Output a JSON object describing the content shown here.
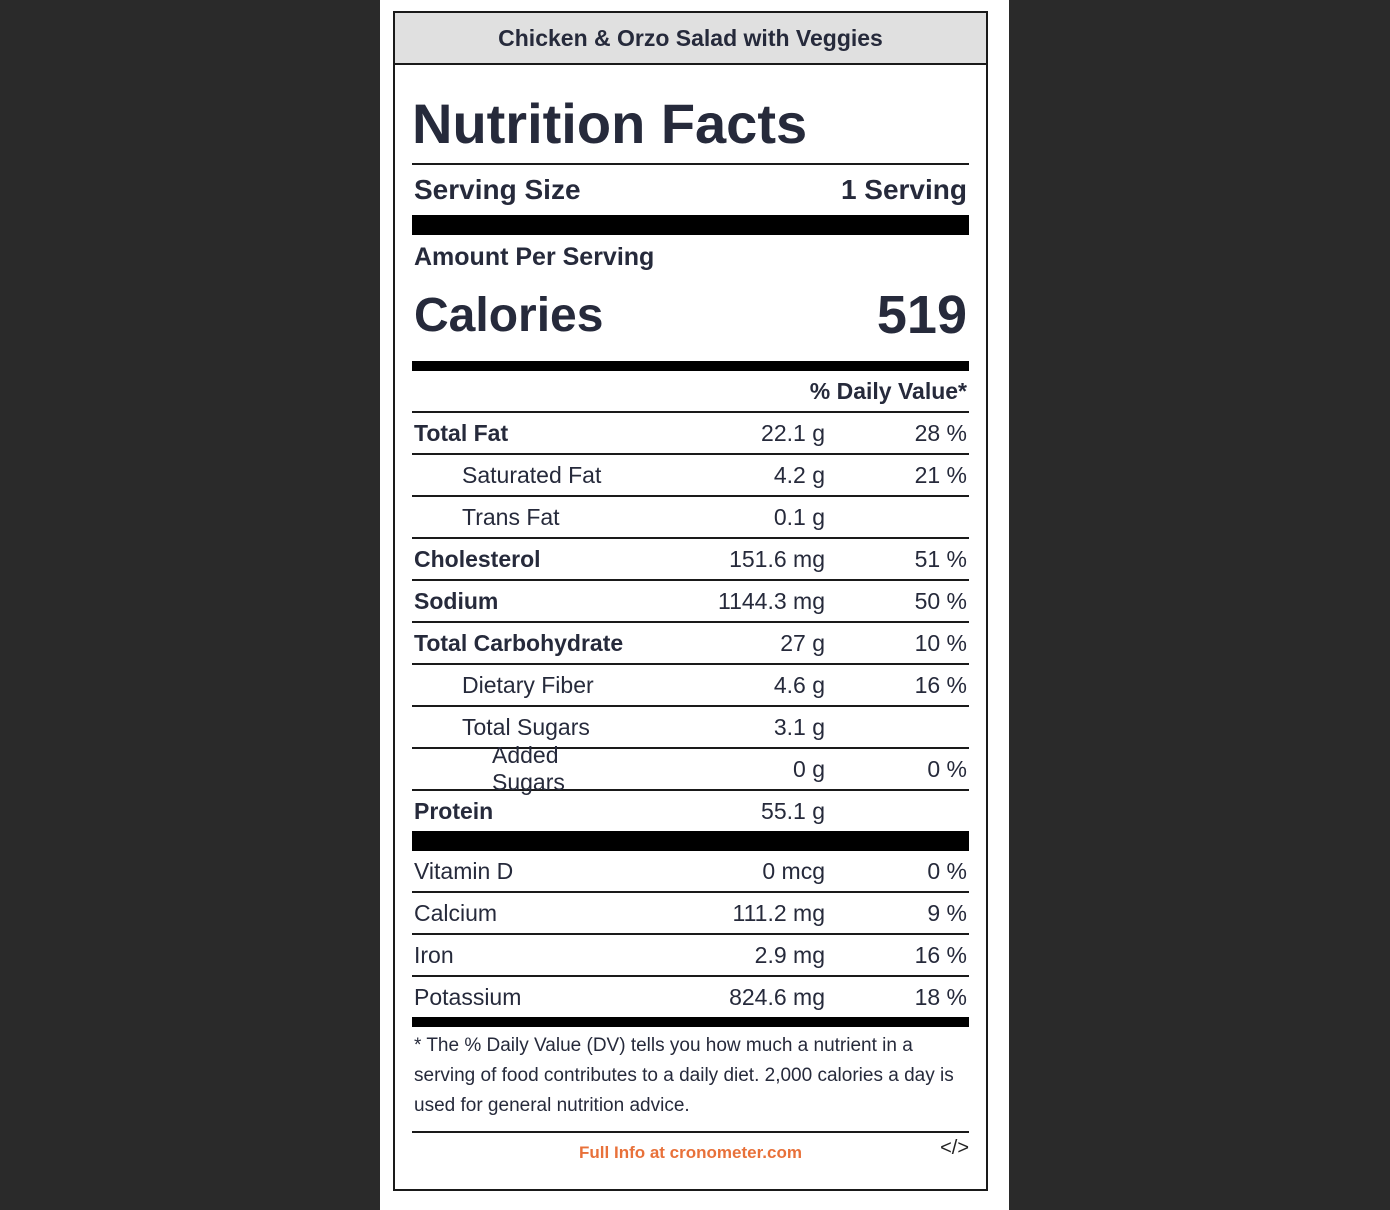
{
  "header": {
    "recipe_title": "Chicken & Orzo Salad with Veggies"
  },
  "label": {
    "title": "Nutrition Facts",
    "serving_size_label": "Serving Size",
    "serving_size_value": "1 Serving",
    "amount_per_serving": "Amount Per Serving",
    "calories_label": "Calories",
    "calories_value": "519",
    "daily_value_header": "% Daily Value*"
  },
  "nutrients": [
    {
      "name": "Total Fat",
      "amount": "22.1 g",
      "dv": "28 %"
    },
    {
      "name": "Saturated Fat",
      "amount": "4.2 g",
      "dv": "21 %"
    },
    {
      "name": "Trans Fat",
      "amount": "0.1 g",
      "dv": ""
    },
    {
      "name": "Cholesterol",
      "amount": "151.6 mg",
      "dv": "51 %"
    },
    {
      "name": "Sodium",
      "amount": "1144.3 mg",
      "dv": "50 %"
    },
    {
      "name": "Total Carbohydrate",
      "amount": "27 g",
      "dv": "10 %"
    },
    {
      "name": "Dietary Fiber",
      "amount": "4.6 g",
      "dv": "16 %"
    },
    {
      "name": "Total Sugars",
      "amount": "3.1 g",
      "dv": ""
    },
    {
      "name": "Added Sugars",
      "amount": "0 g",
      "dv": "0 %"
    },
    {
      "name": "Protein",
      "amount": "55.1 g",
      "dv": ""
    }
  ],
  "vitamins": [
    {
      "name": "Vitamin D",
      "amount": "0 mcg",
      "dv": "0 %"
    },
    {
      "name": "Calcium",
      "amount": "111.2 mg",
      "dv": "9 %"
    },
    {
      "name": "Iron",
      "amount": "2.9 mg",
      "dv": "16 %"
    },
    {
      "name": "Potassium",
      "amount": "824.6 mg",
      "dv": "18 %"
    }
  ],
  "footnote": "* The % Daily Value (DV) tells you how much a nutrient in a serving of food contributes to a daily diet. 2,000 calories a day is used for general nutrition advice.",
  "footer": {
    "link_text": "Full Info at cronometer.com",
    "link_color": "#e8713a",
    "embed_text": "</>"
  }
}
